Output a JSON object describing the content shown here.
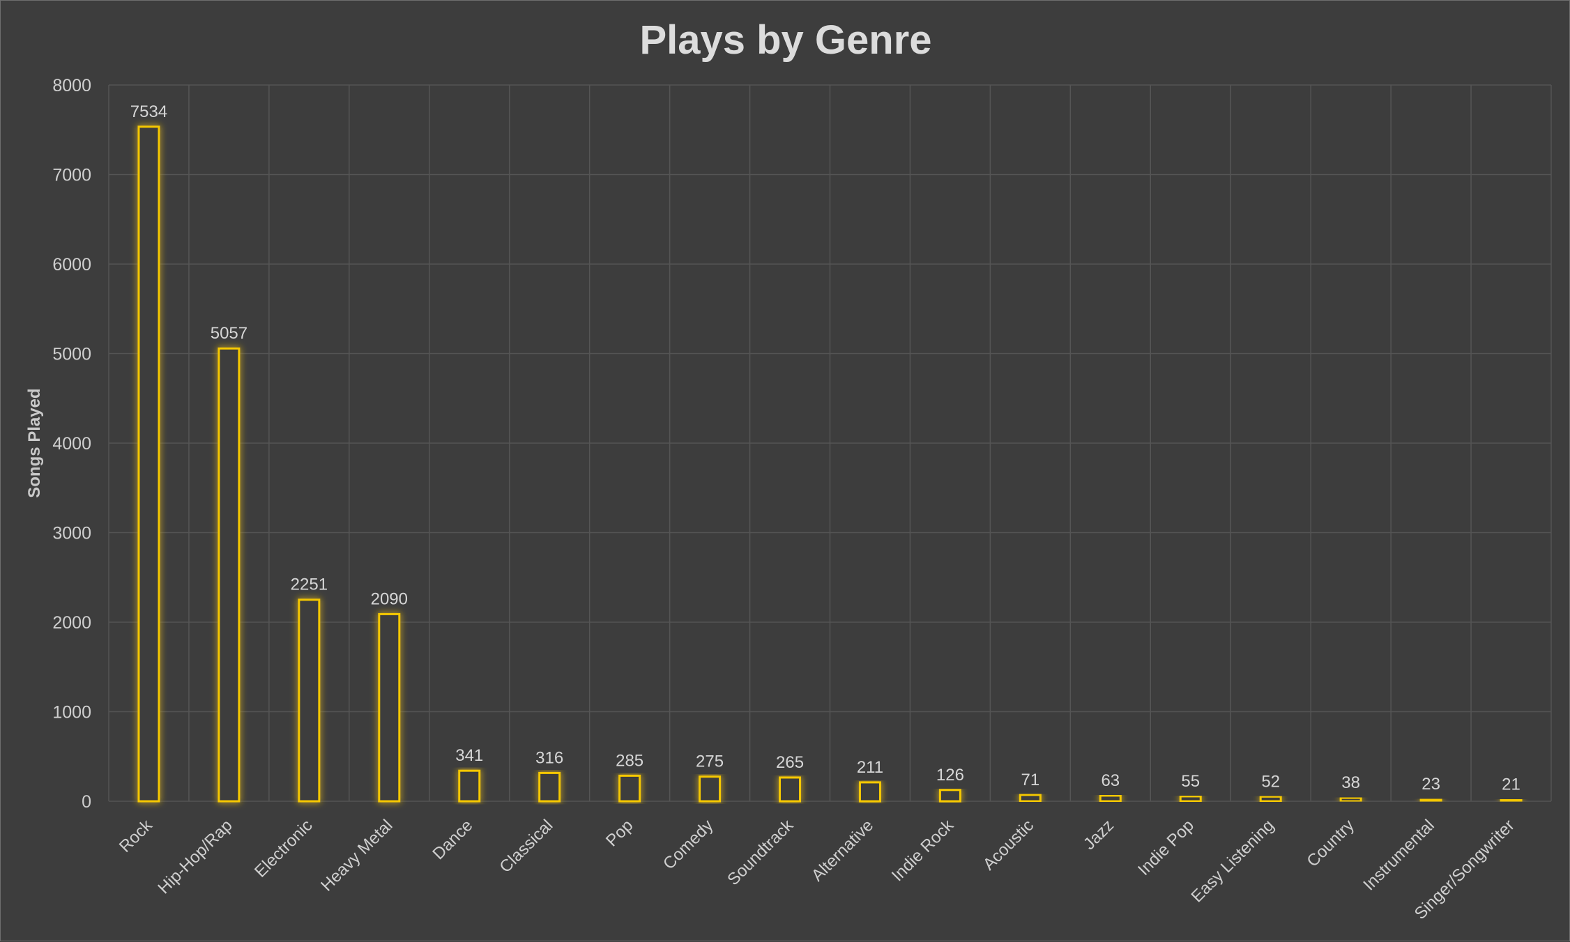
{
  "chart_data": {
    "type": "bar",
    "title": "Plays by Genre",
    "xlabel": "",
    "ylabel": "Songs Played",
    "ylim": [
      0,
      8000
    ],
    "yticks": [
      0,
      1000,
      2000,
      3000,
      4000,
      5000,
      6000,
      7000,
      8000
    ],
    "categories": [
      "Rock",
      "Hip-Hop/Rap",
      "Electronic",
      "Heavy Metal",
      "Dance",
      "Classical",
      "Pop",
      "Comedy",
      "Soundtrack",
      "Alternative",
      "Indie Rock",
      "Acoustic",
      "Jazz",
      "Indie Pop",
      "Easy Listening",
      "Country",
      "Instrumental",
      "Singer/Songwriter"
    ],
    "values": [
      7534,
      5057,
      2251,
      2090,
      341,
      316,
      285,
      275,
      265,
      211,
      126,
      71,
      63,
      55,
      52,
      38,
      23,
      21
    ],
    "grid": true,
    "bar_color": "#f5c800",
    "background": "#3d3d3d"
  }
}
